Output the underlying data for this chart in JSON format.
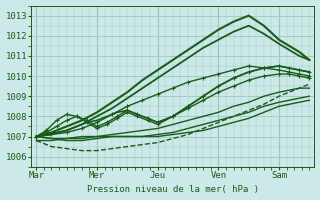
{
  "bg_color": "#cce8e8",
  "grid_color": "#99ccbb",
  "line_color": "#1a5c1a",
  "ylabel": "Pression niveau de la mer( hPa )",
  "ylim": [
    1005.5,
    1013.5
  ],
  "yticks": [
    1006,
    1007,
    1008,
    1009,
    1010,
    1011,
    1012,
    1013
  ],
  "xtick_labels": [
    "Mar",
    "Mer",
    "Jeu",
    "Ven",
    "Sam"
  ],
  "xtick_positions": [
    0,
    24,
    48,
    72,
    96
  ],
  "xlim": [
    -2,
    110
  ],
  "vlines": [
    0,
    24,
    48,
    72,
    96
  ],
  "series": [
    {
      "x": [
        0,
        6,
        12,
        18,
        24,
        30,
        36,
        42,
        48,
        54,
        60,
        66,
        72,
        78,
        84,
        90,
        96,
        100,
        104,
        108
      ],
      "y": [
        1007.0,
        1007.2,
        1007.5,
        1007.8,
        1008.2,
        1008.7,
        1009.2,
        1009.8,
        1010.3,
        1010.8,
        1011.3,
        1011.8,
        1012.3,
        1012.7,
        1013.0,
        1012.5,
        1011.8,
        1011.5,
        1011.2,
        1010.8
      ],
      "lw": 1.5,
      "ls": "-",
      "marker": null,
      "zorder": 3
    },
    {
      "x": [
        0,
        6,
        12,
        18,
        24,
        30,
        36,
        42,
        48,
        54,
        60,
        66,
        72,
        78,
        84,
        90,
        96,
        100,
        104,
        108
      ],
      "y": [
        1007.0,
        1007.1,
        1007.3,
        1007.6,
        1008.0,
        1008.4,
        1008.9,
        1009.4,
        1009.9,
        1010.4,
        1010.9,
        1011.4,
        1011.8,
        1012.2,
        1012.5,
        1012.1,
        1011.6,
        1011.3,
        1011.0,
        1010.8
      ],
      "lw": 1.3,
      "ls": "-",
      "marker": null,
      "zorder": 3
    },
    {
      "x": [
        0,
        6,
        12,
        18,
        24,
        30,
        36,
        42,
        48,
        54,
        60,
        66,
        72,
        78,
        84,
        90,
        96,
        100,
        104,
        108
      ],
      "y": [
        1007.0,
        1007.1,
        1007.2,
        1007.4,
        1007.7,
        1008.1,
        1008.5,
        1008.8,
        1009.1,
        1009.4,
        1009.7,
        1009.9,
        1010.1,
        1010.3,
        1010.5,
        1010.4,
        1010.3,
        1010.2,
        1010.1,
        1010.0
      ],
      "lw": 1.0,
      "ls": "-",
      "marker": "+",
      "zorder": 3
    },
    {
      "x": [
        0,
        4,
        8,
        12,
        16,
        20,
        24,
        28,
        32,
        36,
        40,
        44,
        48,
        54,
        60,
        66,
        72,
        78,
        84,
        90,
        96,
        100,
        104,
        108
      ],
      "y": [
        1007.0,
        1007.3,
        1007.8,
        1008.1,
        1008.0,
        1007.7,
        1007.4,
        1007.6,
        1007.9,
        1008.2,
        1008.0,
        1007.8,
        1007.6,
        1008.0,
        1008.5,
        1009.0,
        1009.5,
        1009.9,
        1010.2,
        1010.4,
        1010.5,
        1010.4,
        1010.3,
        1010.2
      ],
      "lw": 1.0,
      "ls": "-",
      "marker": "+",
      "zorder": 3
    },
    {
      "x": [
        0,
        6,
        12,
        18,
        24,
        30,
        36,
        42,
        48,
        54,
        60,
        66,
        72,
        78,
        84,
        90,
        96,
        100,
        104,
        108
      ],
      "y": [
        1006.8,
        1006.8,
        1006.9,
        1007.0,
        1007.0,
        1007.1,
        1007.2,
        1007.3,
        1007.4,
        1007.6,
        1007.8,
        1008.0,
        1008.2,
        1008.5,
        1008.7,
        1009.0,
        1009.2,
        1009.3,
        1009.4,
        1009.4
      ],
      "lw": 1.0,
      "ls": "-",
      "marker": null,
      "zorder": 2
    },
    {
      "x": [
        0,
        6,
        12,
        18,
        24,
        30,
        36,
        42,
        48,
        54,
        60,
        66,
        72,
        78,
        84,
        90,
        96,
        100,
        104,
        108
      ],
      "y": [
        1007.0,
        1006.9,
        1006.9,
        1006.9,
        1007.0,
        1007.0,
        1007.0,
        1007.0,
        1007.0,
        1007.1,
        1007.2,
        1007.3,
        1007.5,
        1007.7,
        1007.9,
        1008.2,
        1008.5,
        1008.6,
        1008.7,
        1008.8
      ],
      "lw": 1.0,
      "ls": "-",
      "marker": null,
      "zorder": 2
    },
    {
      "x": [
        0,
        6,
        12,
        18,
        24,
        30,
        36,
        42,
        48,
        54,
        60,
        66,
        72,
        78,
        84,
        90,
        96,
        100,
        104,
        108
      ],
      "y": [
        1006.8,
        1006.5,
        1006.4,
        1006.3,
        1006.3,
        1006.4,
        1006.5,
        1006.6,
        1006.7,
        1006.9,
        1007.1,
        1007.4,
        1007.7,
        1008.0,
        1008.3,
        1008.6,
        1009.0,
        1009.2,
        1009.4,
        1009.6
      ],
      "lw": 1.0,
      "ls": "--",
      "marker": null,
      "zorder": 2
    },
    {
      "x": [
        0,
        4,
        8,
        12,
        16,
        20,
        24,
        28,
        32,
        36,
        40,
        44,
        48,
        54,
        60,
        66,
        72,
        78,
        84,
        90,
        96,
        100,
        104,
        108
      ],
      "y": [
        1007.0,
        1007.2,
        1007.5,
        1007.8,
        1008.0,
        1007.8,
        1007.5,
        1007.7,
        1008.0,
        1008.3,
        1008.1,
        1007.9,
        1007.7,
        1008.0,
        1008.4,
        1008.8,
        1009.2,
        1009.5,
        1009.8,
        1010.0,
        1010.1,
        1010.1,
        1010.0,
        1009.9
      ],
      "lw": 1.0,
      "ls": "-",
      "marker": "+",
      "zorder": 3
    },
    {
      "x": [
        0,
        6,
        12,
        18,
        24,
        30,
        36,
        42,
        48,
        54,
        60,
        66,
        72,
        78,
        84,
        90,
        96,
        100,
        104,
        108
      ],
      "y": [
        1007.0,
        1006.9,
        1006.8,
        1006.8,
        1006.9,
        1007.0,
        1007.0,
        1007.0,
        1007.1,
        1007.2,
        1007.4,
        1007.6,
        1007.8,
        1008.0,
        1008.2,
        1008.5,
        1008.7,
        1008.8,
        1008.9,
        1009.0
      ],
      "lw": 1.0,
      "ls": "-",
      "marker": null,
      "zorder": 2
    },
    {
      "x": [
        0,
        4,
        8,
        12,
        16,
        20,
        24,
        28,
        32,
        36,
        40,
        44,
        48,
        54,
        60,
        66,
        72,
        78,
        84,
        90,
        96,
        100,
        104,
        108
      ],
      "y": [
        1007.0,
        1007.1,
        1007.2,
        1007.3,
        1007.5,
        1007.7,
        1007.8,
        1008.0,
        1008.2,
        1008.3,
        1008.1,
        1007.9,
        1007.7,
        1008.0,
        1008.5,
        1009.0,
        1009.5,
        1009.9,
        1010.2,
        1010.4,
        1010.5,
        1010.4,
        1010.3,
        1010.2
      ],
      "lw": 1.2,
      "ls": "-",
      "marker": null,
      "zorder": 3
    }
  ]
}
